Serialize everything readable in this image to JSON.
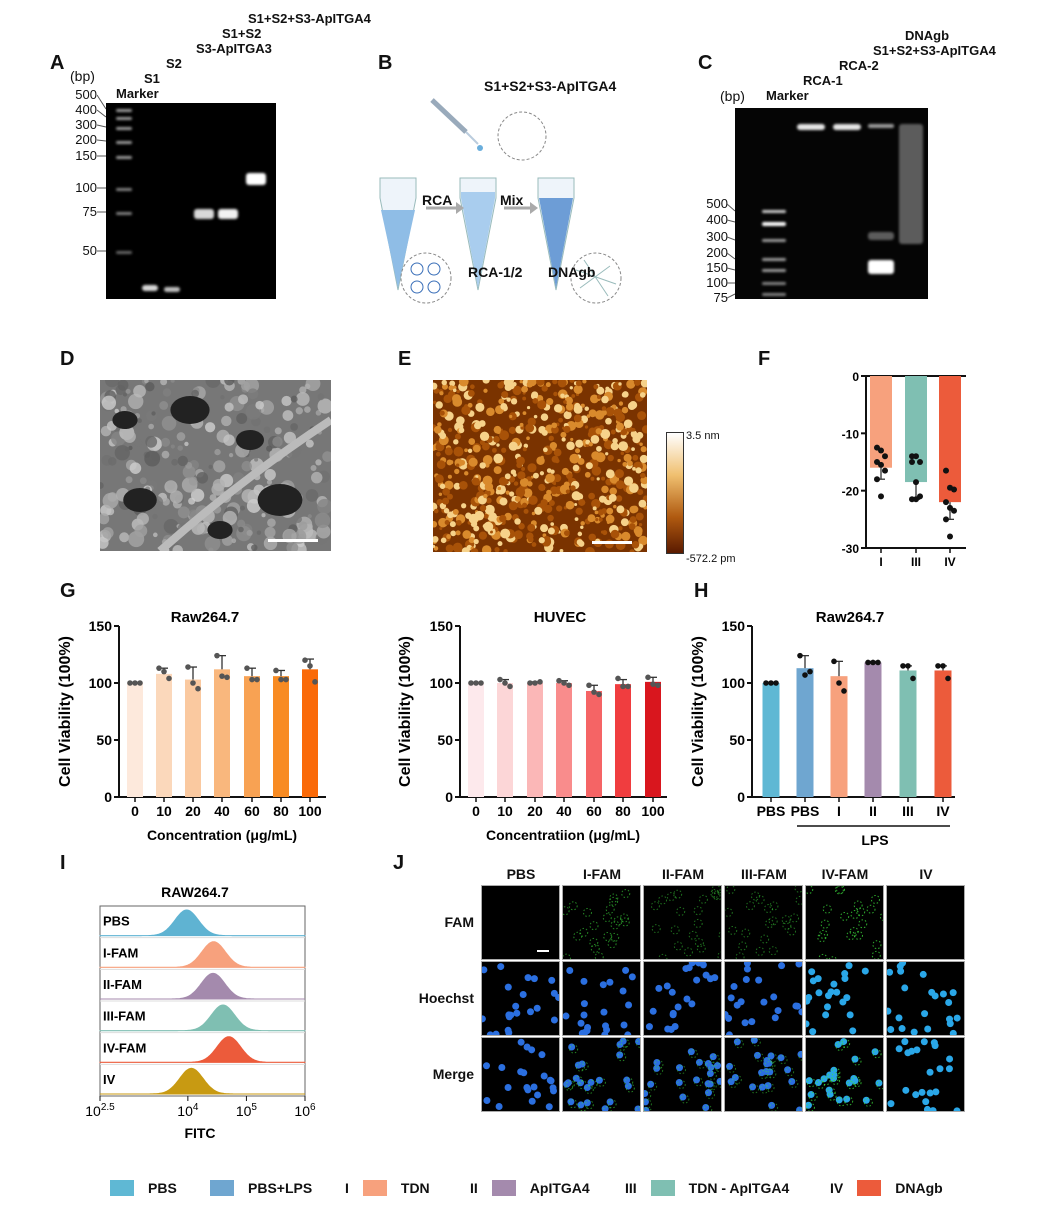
{
  "panels": {
    "A": "A",
    "B": "B",
    "C": "C",
    "D": "D",
    "E": "E",
    "F": "F",
    "G": "G",
    "H": "H",
    "I": "I",
    "J": "J"
  },
  "gelA": {
    "unit": "(bp)",
    "ladder": [
      "500",
      "400",
      "300",
      "200",
      "150",
      "100",
      "75",
      "50"
    ],
    "lanes": [
      "Marker",
      "S1",
      "S2",
      "S3-ApITGA3",
      "S1+S2",
      "S1+S2+S3-ApITGA4"
    ]
  },
  "schemeB": {
    "reagent": "S1+S2+S3-ApITGA4",
    "step1": "RCA",
    "step2": "Mix",
    "product1": "RCA-1/2",
    "product2": "DNAgb"
  },
  "gelC": {
    "unit": "(bp)",
    "ladder": [
      "500",
      "400",
      "300",
      "200",
      "150",
      "100",
      "75"
    ],
    "lanes": [
      "Marker",
      "RCA-1",
      "RCA-2",
      "S1+S2+S3-ApITGA4",
      "DNAgb"
    ]
  },
  "afmE": {
    "scale_max": "3.5 nm",
    "scale_min": "-572.2 pm"
  },
  "chart_data": [
    {
      "id": "F",
      "type": "bar",
      "title": "",
      "ylabel": "",
      "categories": [
        "I",
        "III",
        "IV"
      ],
      "values": [
        -16,
        -18.5,
        -22
      ],
      "errors": [
        2,
        3,
        3
      ],
      "points": [
        [
          -12.5,
          -13,
          -14,
          -15,
          -15.5,
          -16.5,
          -18,
          -21
        ],
        [
          -14,
          -14,
          -15,
          -15,
          -18.5,
          -21,
          -21.5,
          -21.5
        ],
        [
          -16.5,
          -19.5,
          -19.8,
          -22,
          -23,
          -23.5,
          -25,
          -28
        ]
      ],
      "colors": [
        "#f7a17d",
        "#7fbfb2",
        "#ec5b3b"
      ],
      "ylim": [
        -30,
        0
      ],
      "yticks": [
        "0",
        "-10",
        "-20",
        "-30"
      ],
      "ytick_values": [
        0,
        -10,
        -20,
        -30
      ]
    },
    {
      "id": "G1",
      "type": "bar",
      "title": "Raw264.7",
      "xlabel": "Concentration  (μg/mL)",
      "ylabel": "Cell Viability (100%)",
      "categories": [
        "0",
        "10",
        "20",
        "40",
        "60",
        "80",
        "100"
      ],
      "values": [
        100,
        108,
        103,
        112,
        106,
        106,
        112
      ],
      "errors": [
        0,
        5,
        11,
        12,
        7,
        5,
        9
      ],
      "points": [
        [
          100,
          100,
          100
        ],
        [
          113,
          110,
          104
        ],
        [
          114,
          100,
          95
        ],
        [
          124,
          106,
          105
        ],
        [
          113,
          103,
          103
        ],
        [
          111,
          103,
          103
        ],
        [
          120,
          115,
          101
        ]
      ],
      "colors": [
        "#fde9dc",
        "#fbd8bb",
        "#fac9a0",
        "#f9b77d",
        "#f8a253",
        "#f88b22",
        "#fa6a08"
      ],
      "ylim": [
        0,
        150
      ],
      "yticks": [
        "0",
        "50",
        "100",
        "150"
      ],
      "ytick_values": [
        0,
        50,
        100,
        150
      ]
    },
    {
      "id": "G2",
      "type": "bar",
      "title": "HUVEC",
      "xlabel": "Concentratiion (μg/mL)",
      "ylabel": "Cell Viability (100%)",
      "categories": [
        "0",
        "10",
        "20",
        "40",
        "60",
        "80",
        "100"
      ],
      "values": [
        100,
        100,
        100,
        100,
        93,
        99,
        101
      ],
      "errors": [
        0,
        3,
        1,
        2,
        5,
        4,
        4
      ],
      "points": [
        [
          100,
          100,
          100
        ],
        [
          103,
          100,
          97
        ],
        [
          100,
          100,
          101
        ],
        [
          102,
          100,
          98
        ],
        [
          98,
          92,
          90
        ],
        [
          104,
          97,
          97
        ],
        [
          105,
          99,
          98
        ]
      ],
      "colors": [
        "#fde9ec",
        "#fcd6d7",
        "#fbb7b7",
        "#f98c8c",
        "#f56465",
        "#f03d3f",
        "#d9161e"
      ],
      "ylim": [
        0,
        150
      ],
      "yticks": [
        "0",
        "50",
        "100",
        "150"
      ],
      "ytick_values": [
        0,
        50,
        100,
        150
      ]
    },
    {
      "id": "H",
      "type": "bar",
      "title": "Raw264.7",
      "xlabel": "LPS",
      "ylabel": "Cell Viability (100%)",
      "categories": [
        "PBS",
        "PBS",
        "I",
        "II",
        "III",
        "IV"
      ],
      "values": [
        100,
        113,
        106,
        118,
        111,
        111
      ],
      "errors": [
        0,
        11,
        13,
        1,
        4,
        4
      ],
      "points": [
        [
          100,
          100,
          100
        ],
        [
          124,
          107,
          110
        ],
        [
          119,
          100,
          93
        ],
        [
          118,
          118,
          118
        ],
        [
          115,
          115,
          104
        ],
        [
          115,
          115,
          104
        ]
      ],
      "colors": [
        "#5fb8d4",
        "#6fa6d0",
        "#f7a17d",
        "#a48aad",
        "#7fbfb2",
        "#ec5b3b"
      ],
      "ylim": [
        0,
        150
      ],
      "yticks": [
        "0",
        "50",
        "100",
        "150"
      ],
      "ytick_values": [
        0,
        50,
        100,
        150
      ]
    },
    {
      "id": "I",
      "type": "area",
      "title": "RAW264.7",
      "xlabel": "FITC",
      "xscale": "log10",
      "xlim": [
        2.5,
        6
      ],
      "xticks": [
        {
          "base": "10",
          "exp": "2.5"
        },
        {
          "base": "10",
          "exp": "4"
        },
        {
          "base": "10",
          "exp": "5"
        },
        {
          "base": "10",
          "exp": "6"
        }
      ],
      "xtick_values": [
        2.5,
        4,
        5,
        6
      ],
      "series": [
        {
          "name": "PBS",
          "peak_log10": 3.98,
          "color": "#5fb3d2"
        },
        {
          "name": "I-FAM",
          "peak_log10": 4.44,
          "color": "#f7a17d"
        },
        {
          "name": "II-FAM",
          "peak_log10": 4.43,
          "color": "#a48aad"
        },
        {
          "name": "III-FAM",
          "peak_log10": 4.6,
          "color": "#7fbfb2"
        },
        {
          "name": "IV-FAM",
          "peak_log10": 4.7,
          "color": "#ec5b3b"
        },
        {
          "name": "IV",
          "peak_log10": 4.06,
          "color": "#c89a12"
        }
      ]
    }
  ],
  "microscopyJ": {
    "columns": [
      "PBS",
      "I-FAM",
      "II-FAM",
      "III-FAM",
      "IV-FAM",
      "IV"
    ],
    "rows": [
      "FAM",
      "Hoechst",
      "Merge"
    ],
    "green_intensity": [
      0.02,
      0.6,
      0.5,
      0.5,
      0.75,
      0.03
    ]
  },
  "legend": [
    {
      "roman": "",
      "label": "PBS",
      "color": "#5fb8d4"
    },
    {
      "roman": "",
      "label": "PBS+LPS",
      "color": "#6fa6d0"
    },
    {
      "roman": "I",
      "label": "TDN",
      "color": "#f7a17d"
    },
    {
      "roman": "II",
      "label": "ApITGA4",
      "color": "#a48aad"
    },
    {
      "roman": "III",
      "label": "TDN - ApITGA4",
      "color": "#7fbfb2"
    },
    {
      "roman": "IV",
      "label": "DNAgb",
      "color": "#ec5b3b"
    }
  ]
}
